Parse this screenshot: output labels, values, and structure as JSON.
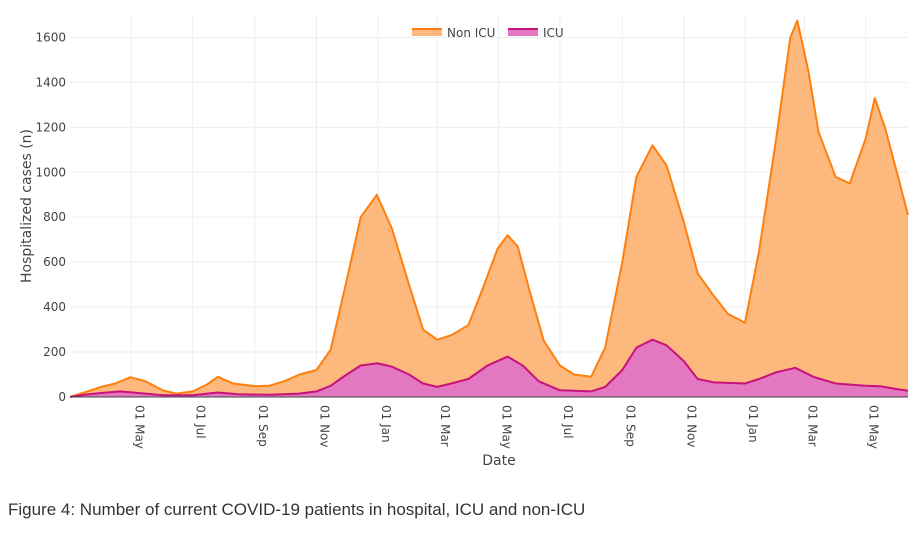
{
  "caption": "Figure 4: Number of current COVID-19 patients in hospital, ICU and non-ICU",
  "colors": {
    "non_icu_line": "#ff7f0e",
    "non_icu_fill": "#fdb97d",
    "icu_line": "#c7127c",
    "icu_fill": "#e377c2",
    "grid": "#eeeeee",
    "text": "#444444"
  },
  "chart_data": {
    "type": "area",
    "title": "",
    "xlabel": "Date",
    "ylabel": "Hospitalized cases (n)",
    "ylim": [
      0,
      1700
    ],
    "yticks": [
      0,
      200,
      400,
      600,
      800,
      1000,
      1200,
      1400,
      1600
    ],
    "xlim": [
      "2020-03-01",
      "2022-06-12"
    ],
    "xticks": [
      {
        "date": "2020-05-01",
        "label": "01 May"
      },
      {
        "date": "2020-07-01",
        "label": "01 Jul"
      },
      {
        "date": "2020-09-01",
        "label": "01 Sep"
      },
      {
        "date": "2020-11-01",
        "label": "01 Nov"
      },
      {
        "date": "2021-01-01",
        "label": "01 Jan"
      },
      {
        "date": "2021-03-01",
        "label": "01 Mar"
      },
      {
        "date": "2021-05-01",
        "label": "01 May"
      },
      {
        "date": "2021-07-01",
        "label": "01 Jul"
      },
      {
        "date": "2021-09-01",
        "label": "01 Sep"
      },
      {
        "date": "2021-11-01",
        "label": "01 Nov"
      },
      {
        "date": "2022-01-01",
        "label": "01 Jan"
      },
      {
        "date": "2022-03-01",
        "label": "01 Mar"
      },
      {
        "date": "2022-05-01",
        "label": "01 May"
      }
    ],
    "grid": true,
    "legend_position": "top-center",
    "series": [
      {
        "name": "Non ICU",
        "points": [
          [
            "2020-03-01",
            0
          ],
          [
            "2020-03-15",
            20
          ],
          [
            "2020-04-01",
            45
          ],
          [
            "2020-04-15",
            60
          ],
          [
            "2020-04-30",
            88
          ],
          [
            "2020-05-15",
            70
          ],
          [
            "2020-06-01",
            30
          ],
          [
            "2020-06-15",
            15
          ],
          [
            "2020-07-01",
            25
          ],
          [
            "2020-07-15",
            55
          ],
          [
            "2020-07-26",
            90
          ],
          [
            "2020-08-10",
            60
          ],
          [
            "2020-09-01",
            48
          ],
          [
            "2020-09-15",
            50
          ],
          [
            "2020-10-01",
            72
          ],
          [
            "2020-10-15",
            100
          ],
          [
            "2020-11-01",
            120
          ],
          [
            "2020-11-15",
            210
          ],
          [
            "2020-12-01",
            520
          ],
          [
            "2020-12-15",
            800
          ],
          [
            "2020-12-31",
            900
          ],
          [
            "2021-01-15",
            750
          ],
          [
            "2021-02-01",
            500
          ],
          [
            "2021-02-15",
            300
          ],
          [
            "2021-03-01",
            255
          ],
          [
            "2021-03-15",
            275
          ],
          [
            "2021-04-01",
            320
          ],
          [
            "2021-04-15",
            480
          ],
          [
            "2021-04-30",
            660
          ],
          [
            "2021-05-10",
            720
          ],
          [
            "2021-05-20",
            670
          ],
          [
            "2021-06-01",
            470
          ],
          [
            "2021-06-15",
            250
          ],
          [
            "2021-07-01",
            140
          ],
          [
            "2021-07-15",
            100
          ],
          [
            "2021-08-01",
            90
          ],
          [
            "2021-08-15",
            220
          ],
          [
            "2021-09-01",
            600
          ],
          [
            "2021-09-15",
            980
          ],
          [
            "2021-10-01",
            1120
          ],
          [
            "2021-10-15",
            1030
          ],
          [
            "2021-11-01",
            780
          ],
          [
            "2021-11-15",
            550
          ],
          [
            "2021-12-01",
            450
          ],
          [
            "2021-12-15",
            370
          ],
          [
            "2022-01-01",
            330
          ],
          [
            "2022-01-15",
            650
          ],
          [
            "2022-02-01",
            1150
          ],
          [
            "2022-02-15",
            1600
          ],
          [
            "2022-02-22",
            1675
          ],
          [
            "2022-03-05",
            1450
          ],
          [
            "2022-03-15",
            1180
          ],
          [
            "2022-04-01",
            980
          ],
          [
            "2022-04-15",
            950
          ],
          [
            "2022-05-01",
            1150
          ],
          [
            "2022-05-10",
            1330
          ],
          [
            "2022-05-20",
            1200
          ],
          [
            "2022-06-01",
            1000
          ],
          [
            "2022-06-12",
            810
          ]
        ]
      },
      {
        "name": "ICU",
        "points": [
          [
            "2020-03-01",
            0
          ],
          [
            "2020-03-15",
            10
          ],
          [
            "2020-04-01",
            18
          ],
          [
            "2020-04-20",
            25
          ],
          [
            "2020-05-15",
            15
          ],
          [
            "2020-06-01",
            8
          ],
          [
            "2020-07-01",
            8
          ],
          [
            "2020-07-26",
            20
          ],
          [
            "2020-08-15",
            12
          ],
          [
            "2020-09-15",
            10
          ],
          [
            "2020-10-15",
            15
          ],
          [
            "2020-11-01",
            25
          ],
          [
            "2020-11-15",
            50
          ],
          [
            "2020-12-01",
            100
          ],
          [
            "2020-12-15",
            140
          ],
          [
            "2021-01-01",
            150
          ],
          [
            "2021-01-15",
            135
          ],
          [
            "2021-02-01",
            100
          ],
          [
            "2021-02-15",
            60
          ],
          [
            "2021-03-01",
            45
          ],
          [
            "2021-03-15",
            60
          ],
          [
            "2021-04-01",
            80
          ],
          [
            "2021-04-20",
            140
          ],
          [
            "2021-05-10",
            180
          ],
          [
            "2021-05-25",
            140
          ],
          [
            "2021-06-10",
            70
          ],
          [
            "2021-07-01",
            30
          ],
          [
            "2021-08-01",
            25
          ],
          [
            "2021-08-15",
            45
          ],
          [
            "2021-09-01",
            120
          ],
          [
            "2021-09-15",
            220
          ],
          [
            "2021-10-01",
            255
          ],
          [
            "2021-10-15",
            230
          ],
          [
            "2021-11-01",
            160
          ],
          [
            "2021-11-15",
            80
          ],
          [
            "2021-12-01",
            65
          ],
          [
            "2022-01-01",
            60
          ],
          [
            "2022-01-15",
            80
          ],
          [
            "2022-02-01",
            110
          ],
          [
            "2022-02-20",
            130
          ],
          [
            "2022-03-10",
            90
          ],
          [
            "2022-04-01",
            60
          ],
          [
            "2022-05-01",
            50
          ],
          [
            "2022-05-15",
            48
          ],
          [
            "2022-06-01",
            35
          ],
          [
            "2022-06-12",
            28
          ]
        ]
      }
    ]
  }
}
